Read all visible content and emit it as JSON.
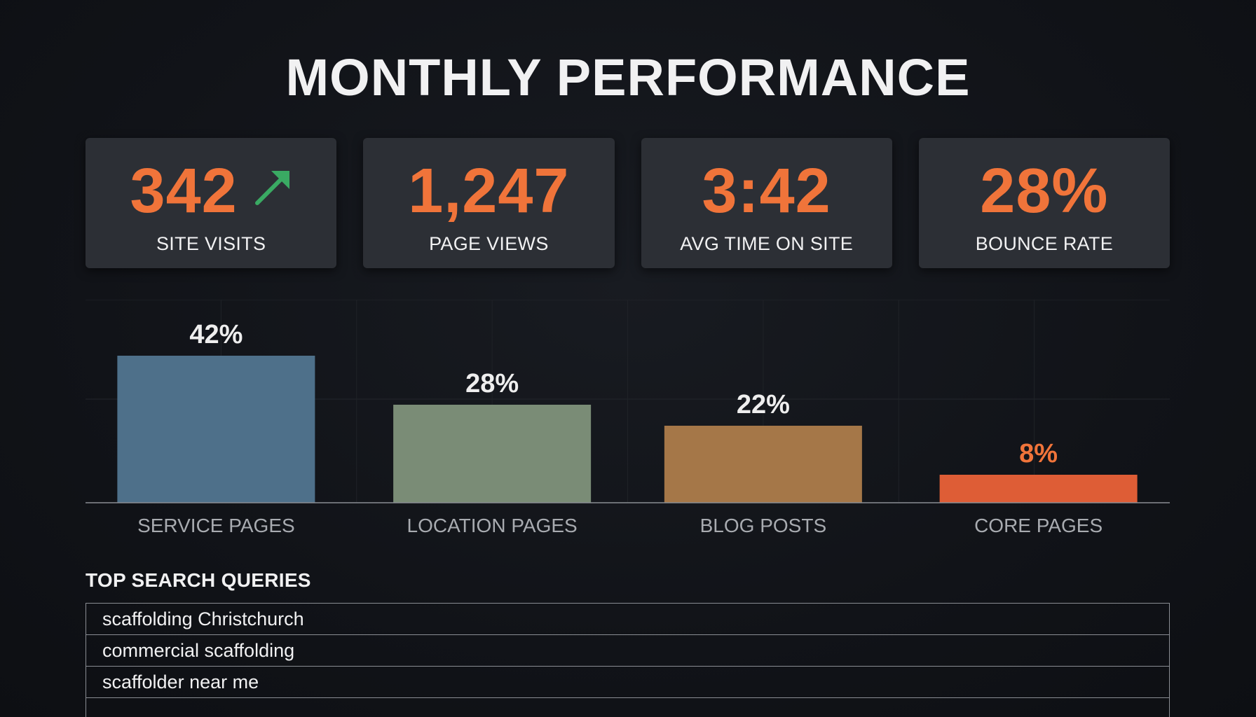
{
  "title": "MONTHLY PERFORMANCE",
  "kpis": [
    {
      "value": "342",
      "label": "SITE VISITS",
      "trend_icon": "trend-up-arrow-icon",
      "trend_color": "#3aaa63"
    },
    {
      "value": "1,247",
      "label": "PAGE VIEWS"
    },
    {
      "value": "3:42",
      "label": "AVG TIME ON SITE"
    },
    {
      "value": "28%",
      "label": "BOUNCE RATE"
    }
  ],
  "colors": {
    "accent": "#f0743a",
    "card_bg": "#2c2f35",
    "background": "#111318",
    "trend_up": "#3aaa63"
  },
  "chart_data": {
    "type": "bar",
    "categories": [
      "SERVICE PAGES",
      "LOCATION PAGES",
      "BLOG POSTS",
      "CORE PAGES"
    ],
    "values": [
      42,
      28,
      22,
      8
    ],
    "value_labels": [
      "42%",
      "28%",
      "22%",
      "8%"
    ],
    "colors": [
      "#4e708a",
      "#7a8c76",
      "#a57748",
      "#de5d36"
    ],
    "label_colors": [
      "#eeeeee",
      "#eeeeee",
      "#eeeeee",
      "#f0743a"
    ],
    "title": "",
    "xlabel": "",
    "ylabel": "",
    "ylim": [
      0,
      42
    ],
    "grid": true,
    "legend": "none"
  },
  "queries": {
    "title": "TOP SEARCH QUERIES",
    "rows": [
      "scaffolding Christchurch",
      "commercial scaffolding",
      "scaffolder near me",
      ""
    ]
  }
}
